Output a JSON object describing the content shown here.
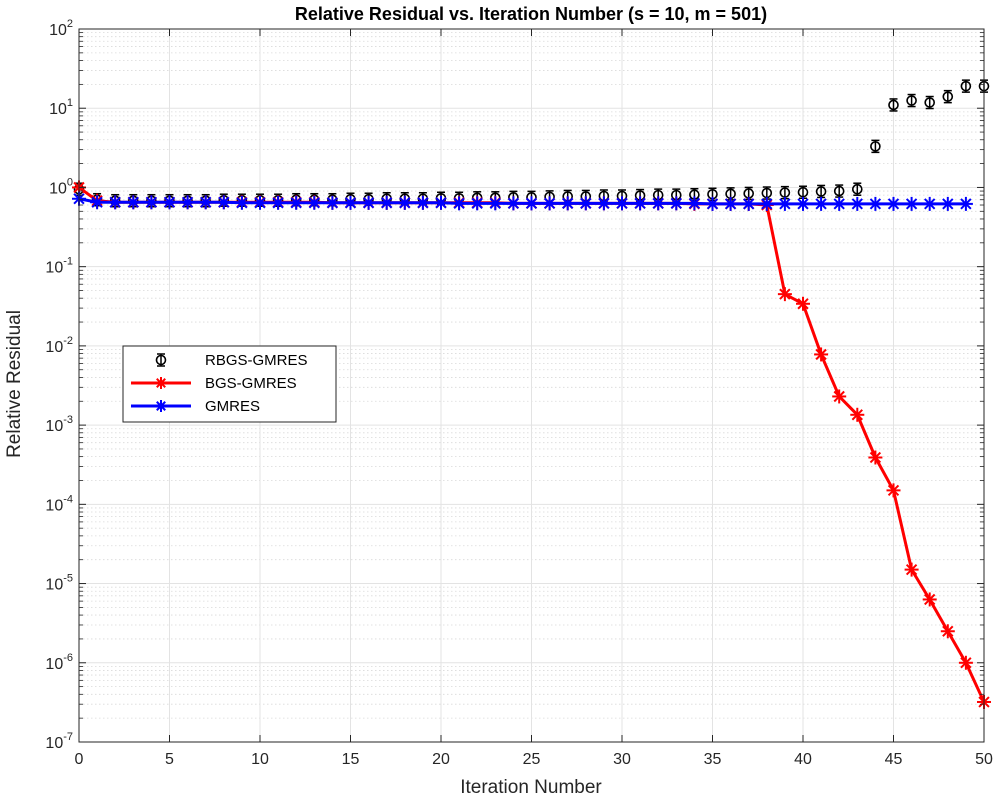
{
  "chart_data": {
    "type": "line",
    "title": "Relative Residual vs. Iteration Number (s = 10, m = 501)",
    "xlabel": "Iteration Number",
    "ylabel": "Relative Residual",
    "xlim": [
      0,
      50
    ],
    "ylim": [
      1e-07,
      100
    ],
    "yscale": "log",
    "grid": true,
    "minor_grid": true,
    "legend_position": "left-middle",
    "x_ticks": [
      0,
      5,
      10,
      15,
      20,
      25,
      30,
      35,
      40,
      45,
      50
    ],
    "y_ticks": [
      {
        "base": "10",
        "exp": "-7",
        "value": 1e-07
      },
      {
        "base": "10",
        "exp": "-6",
        "value": 1e-06
      },
      {
        "base": "10",
        "exp": "-5",
        "value": 1e-05
      },
      {
        "base": "10",
        "exp": "-4",
        "value": 0.0001
      },
      {
        "base": "10",
        "exp": "-3",
        "value": 0.001
      },
      {
        "base": "10",
        "exp": "-2",
        "value": 0.01
      },
      {
        "base": "10",
        "exp": "-1",
        "value": 0.1
      },
      {
        "base": "10",
        "exp": "0",
        "value": 1
      },
      {
        "base": "10",
        "exp": "1",
        "value": 10
      },
      {
        "base": "10",
        "exp": "2",
        "value": 100
      }
    ],
    "series": [
      {
        "name": "RBGS-GMRES",
        "color": "#000000",
        "marker": "circle-errorbar",
        "line": false,
        "x": [
          0,
          1,
          2,
          3,
          4,
          5,
          6,
          7,
          8,
          9,
          10,
          11,
          12,
          13,
          14,
          15,
          16,
          17,
          18,
          19,
          20,
          21,
          22,
          23,
          24,
          25,
          26,
          27,
          28,
          29,
          30,
          31,
          32,
          33,
          34,
          35,
          36,
          37,
          38,
          39,
          40,
          41,
          42,
          43,
          44,
          45,
          46,
          47,
          48,
          49,
          50
        ],
        "y": [
          0.95,
          0.7,
          0.68,
          0.68,
          0.68,
          0.68,
          0.68,
          0.68,
          0.69,
          0.69,
          0.69,
          0.69,
          0.7,
          0.7,
          0.7,
          0.71,
          0.71,
          0.72,
          0.72,
          0.72,
          0.73,
          0.73,
          0.74,
          0.74,
          0.75,
          0.75,
          0.76,
          0.77,
          0.77,
          0.78,
          0.78,
          0.79,
          0.8,
          0.8,
          0.81,
          0.82,
          0.83,
          0.84,
          0.85,
          0.86,
          0.87,
          0.89,
          0.9,
          0.95,
          3.3,
          11.0,
          12.5,
          11.8,
          14.0,
          19.0,
          19.0
        ]
      },
      {
        "name": "BGS-GMRES",
        "color": "#ff0000",
        "marker": "asterisk",
        "line": true,
        "x": [
          0,
          1,
          2,
          3,
          4,
          5,
          6,
          7,
          8,
          9,
          10,
          11,
          12,
          13,
          14,
          15,
          16,
          17,
          18,
          19,
          20,
          21,
          22,
          23,
          24,
          25,
          26,
          27,
          28,
          29,
          30,
          31,
          32,
          33,
          34,
          35,
          36,
          37,
          38,
          39,
          40,
          41,
          42,
          43,
          44,
          45,
          46,
          47,
          48,
          49,
          50
        ],
        "y": [
          1.0,
          0.68,
          0.65,
          0.65,
          0.65,
          0.65,
          0.65,
          0.65,
          0.65,
          0.65,
          0.65,
          0.65,
          0.65,
          0.65,
          0.64,
          0.64,
          0.64,
          0.64,
          0.64,
          0.64,
          0.64,
          0.64,
          0.64,
          0.64,
          0.63,
          0.63,
          0.63,
          0.63,
          0.63,
          0.63,
          0.63,
          0.63,
          0.63,
          0.63,
          0.62,
          0.62,
          0.62,
          0.62,
          0.6,
          0.045,
          0.034,
          0.0078,
          0.0023,
          0.00135,
          0.00039,
          0.00015,
          1.5e-05,
          6.3e-06,
          2.5e-06,
          1e-06,
          3.2e-07
        ]
      },
      {
        "name": "GMRES",
        "color": "#0000ff",
        "marker": "asterisk",
        "line": true,
        "x": [
          0,
          1,
          2,
          3,
          4,
          5,
          6,
          7,
          8,
          9,
          10,
          11,
          12,
          13,
          14,
          15,
          16,
          17,
          18,
          19,
          20,
          21,
          22,
          23,
          24,
          25,
          26,
          27,
          28,
          29,
          30,
          31,
          32,
          33,
          34,
          35,
          36,
          37,
          38,
          39,
          40,
          41,
          42,
          43,
          44,
          45,
          46,
          47,
          48,
          49
        ],
        "y": [
          0.72,
          0.65,
          0.65,
          0.65,
          0.65,
          0.65,
          0.65,
          0.65,
          0.65,
          0.64,
          0.64,
          0.64,
          0.64,
          0.64,
          0.64,
          0.64,
          0.64,
          0.64,
          0.64,
          0.64,
          0.64,
          0.63,
          0.63,
          0.63,
          0.63,
          0.63,
          0.63,
          0.63,
          0.63,
          0.63,
          0.63,
          0.63,
          0.63,
          0.63,
          0.63,
          0.62,
          0.62,
          0.62,
          0.62,
          0.62,
          0.62,
          0.62,
          0.62,
          0.62,
          0.62,
          0.62,
          0.62,
          0.62,
          0.62,
          0.62
        ]
      }
    ]
  }
}
